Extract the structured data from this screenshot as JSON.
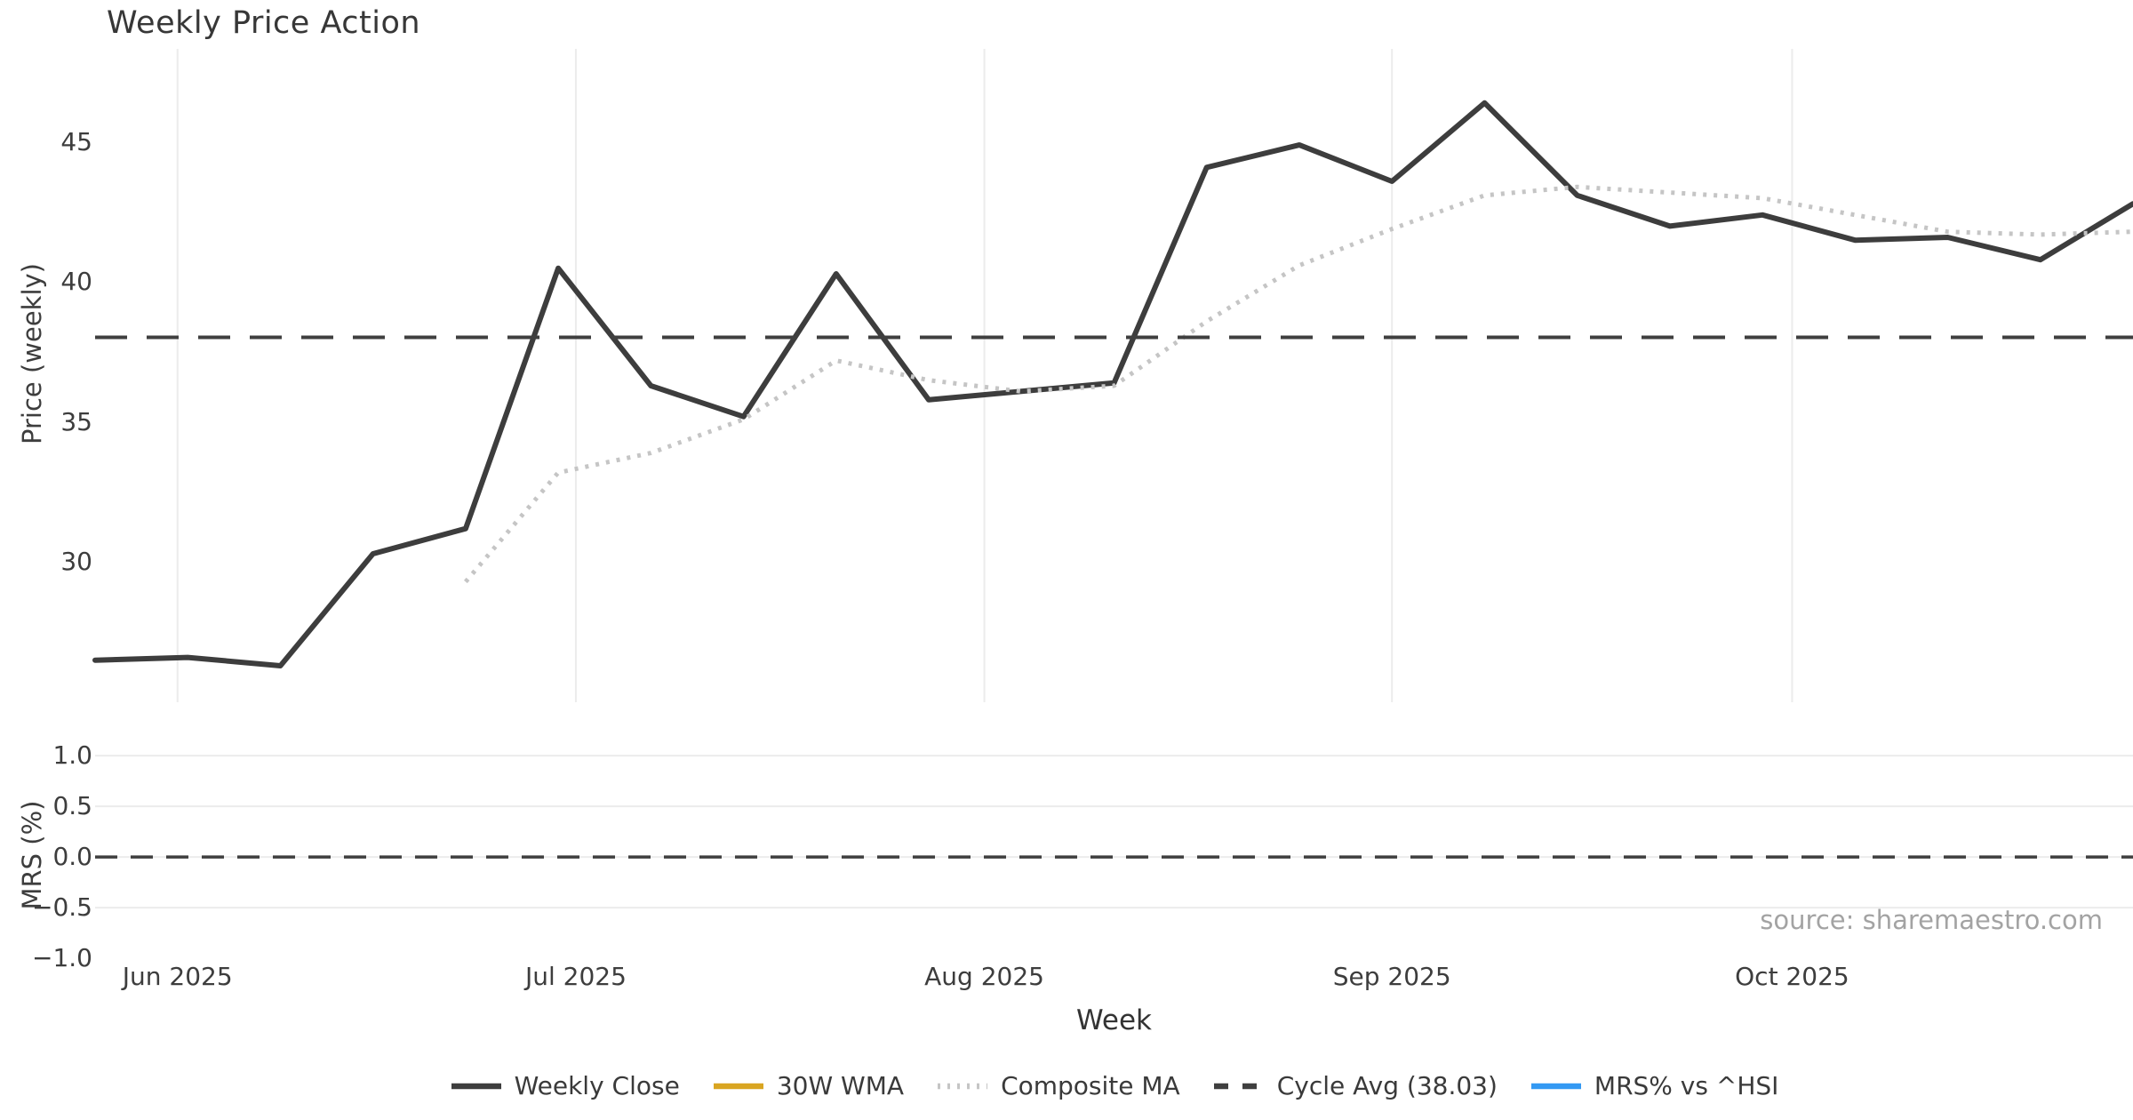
{
  "title": "Weekly Price Action",
  "source_note": "source: sharemaestro.com",
  "axes": {
    "x_label": "Week",
    "price_axis_label": "Price (weekly)",
    "mrs_axis_label": "MRS (%)"
  },
  "colors": {
    "weekly_close": "#3d3d3d",
    "wma_30w": "#d9a521",
    "composite_ma": "#c5c5c5",
    "cycle_avg": "#3f3f3f",
    "mrs_line": "#3399f3",
    "gridline": "#ececec",
    "tick_text": "#3d3d3d",
    "source_text": "#a3a3a3",
    "background": "#ffffff"
  },
  "legend": {
    "items": [
      {
        "label": "Weekly Close",
        "color": "#3d3d3d",
        "pattern": "solid"
      },
      {
        "label": "30W WMA",
        "color": "#d9a521",
        "pattern": "solid"
      },
      {
        "label": "Composite MA",
        "color": "#c5c5c5",
        "pattern": "dotted"
      },
      {
        "label": "Cycle Avg (38.03)",
        "color": "#3f3f3f",
        "pattern": "dashed"
      },
      {
        "label": "MRS% vs ^HSI",
        "color": "#3399f3",
        "pattern": "solid"
      }
    ]
  },
  "chart_data": {
    "type": "line",
    "title": "Weekly Price Action",
    "xlabel": "Week",
    "x_unit": "week-index",
    "xlim": [
      0,
      22
    ],
    "xticks": [
      {
        "label": "Jun 2025",
        "x": 0.89
      },
      {
        "label": "Jul 2025",
        "x": 5.19
      },
      {
        "label": "Aug 2025",
        "x": 9.6
      },
      {
        "label": "Sep 2025",
        "x": 14.0
      },
      {
        "label": "Oct 2025",
        "x": 18.32
      }
    ],
    "panels": [
      {
        "name": "price",
        "ylabel": "Price (weekly)",
        "ylim": [
          25.0,
          48.33
        ],
        "yticks": [
          {
            "label": "45",
            "v": 45
          },
          {
            "label": "40",
            "v": 40
          },
          {
            "label": "35",
            "v": 35
          },
          {
            "label": "30",
            "v": 30
          }
        ],
        "grid": "vertical-month-lines",
        "series": [
          {
            "name": "Weekly Close",
            "style": "solid",
            "color": "#3d3d3d",
            "width": 6,
            "x": [
              0,
              1,
              2,
              3,
              4,
              5,
              6,
              7,
              8,
              9,
              10,
              11,
              12,
              13,
              14,
              15,
              16,
              17,
              18,
              19,
              20,
              21,
              22
            ],
            "y": [
              26.5,
              26.6,
              26.3,
              30.3,
              31.2,
              40.5,
              36.3,
              35.2,
              40.3,
              35.8,
              36.1,
              36.4,
              44.1,
              44.9,
              43.6,
              46.4,
              43.1,
              42.0,
              42.4,
              41.5,
              41.6,
              40.8,
              42.8
            ]
          },
          {
            "name": "Composite MA",
            "style": "dotted",
            "color": "#c5c5c5",
            "width": 5,
            "x": [
              4,
              5,
              6,
              7,
              8,
              9,
              10,
              11,
              12,
              13,
              14,
              15,
              16,
              17,
              18,
              19,
              20,
              21,
              22
            ],
            "y": [
              29.3,
              33.2,
              33.9,
              35.1,
              37.2,
              36.5,
              36.1,
              36.3,
              38.6,
              40.6,
              41.9,
              43.1,
              43.4,
              43.2,
              43.0,
              42.4,
              41.8,
              41.7,
              41.8
            ]
          },
          {
            "name": "30W WMA",
            "style": "solid",
            "color": "#d9a521",
            "width": 6,
            "x": [],
            "y": []
          },
          {
            "name": "Cycle Avg (38.03)",
            "style": "dashed",
            "color": "#3f3f3f",
            "width": 4,
            "hline": 38.03
          }
        ]
      },
      {
        "name": "mrs",
        "ylabel": "MRS (%)",
        "ylim": [
          -1.06,
          1.045
        ],
        "yticks": [
          {
            "label": "1.0",
            "v": 1.0
          },
          {
            "label": "0.5",
            "v": 0.5
          },
          {
            "label": "0.0",
            "v": 0.0
          },
          {
            "label": "−0.5",
            "v": -0.5
          },
          {
            "label": "−1.0",
            "v": -1.0
          }
        ],
        "grid": "horizontal-lines",
        "series": [
          {
            "name": "MRS% vs ^HSI",
            "style": "solid",
            "color": "#3399f3",
            "width": 5,
            "x": [],
            "y": []
          },
          {
            "name": "Zero line",
            "style": "dashed",
            "color": "#3f3f3f",
            "width": 3.5,
            "hline": 0.0
          }
        ]
      }
    ]
  }
}
